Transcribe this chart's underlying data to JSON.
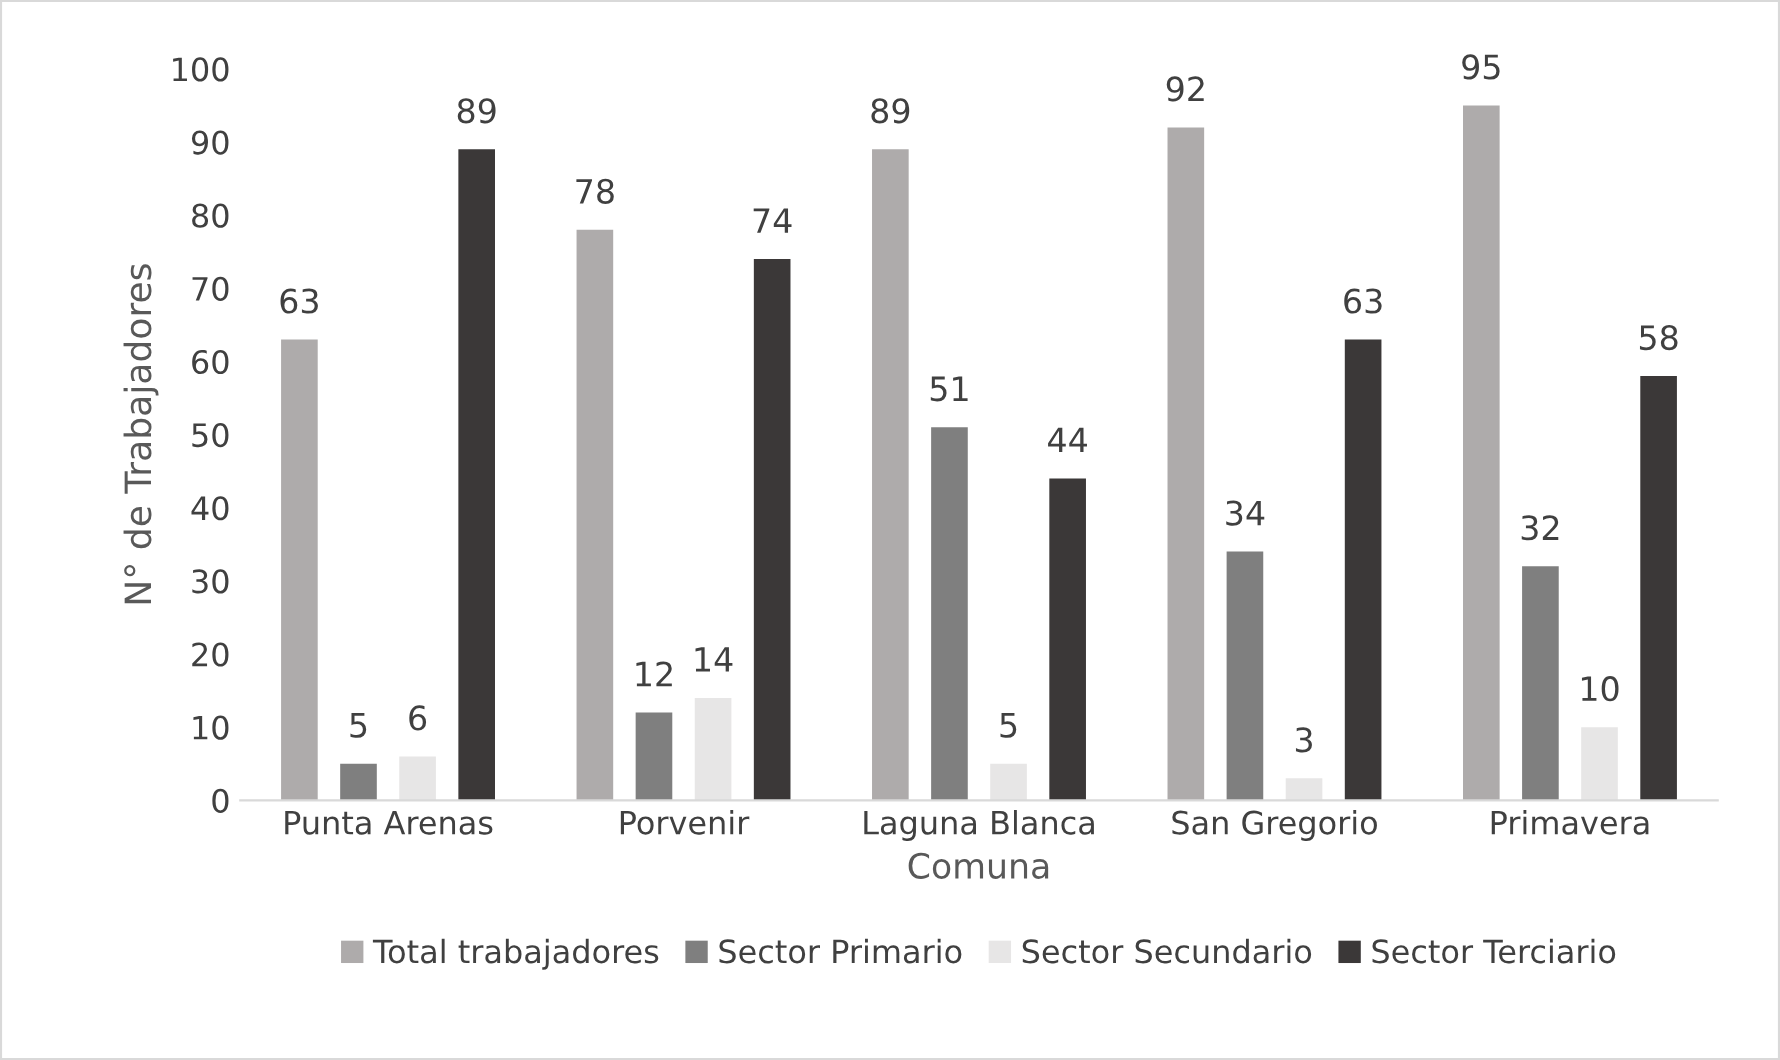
{
  "chart_data": {
    "type": "bar",
    "xlabel": "Comuna",
    "ylabel": "N° de Trabajadores",
    "categories": [
      "Punta Arenas",
      "Porvenir",
      "Laguna Blanca",
      "San Gregorio",
      "Primavera"
    ],
    "series": [
      {
        "name": "Total trabajadores",
        "color": "#aeabab",
        "values": [
          63,
          78,
          89,
          92,
          95
        ]
      },
      {
        "name": "Sector Primario",
        "color": "#7f7f7f",
        "values": [
          5,
          12,
          51,
          34,
          32
        ]
      },
      {
        "name": "Sector Secundario",
        "color": "#e7e6e6",
        "values": [
          6,
          14,
          5,
          3,
          10
        ]
      },
      {
        "name": "Sector Terciario",
        "color": "#3b3838",
        "values": [
          89,
          74,
          44,
          63,
          58
        ]
      }
    ],
    "ylim": [
      0,
      100
    ],
    "yticks": [
      0,
      10,
      20,
      30,
      40,
      50,
      60,
      70,
      80,
      90,
      100
    ],
    "data_labels": true,
    "legend": "bottom",
    "grid": false
  }
}
